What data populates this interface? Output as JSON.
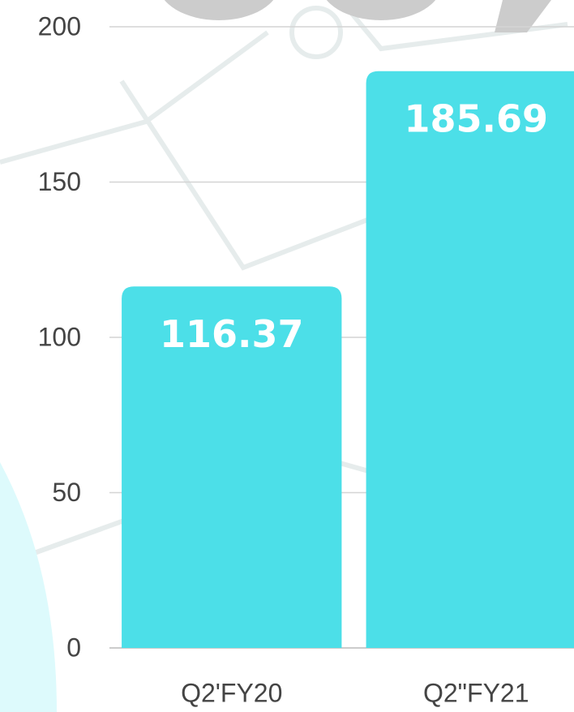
{
  "chart_data": {
    "type": "bar",
    "categories": [
      "Q2'FY20",
      "Q2\"FY21"
    ],
    "values": [
      116.37,
      185.69
    ],
    "color": "#4cdfe8",
    "ylim": [
      0,
      200
    ],
    "yticks": [
      0,
      50,
      100,
      150,
      200
    ],
    "grid": true
  }
}
